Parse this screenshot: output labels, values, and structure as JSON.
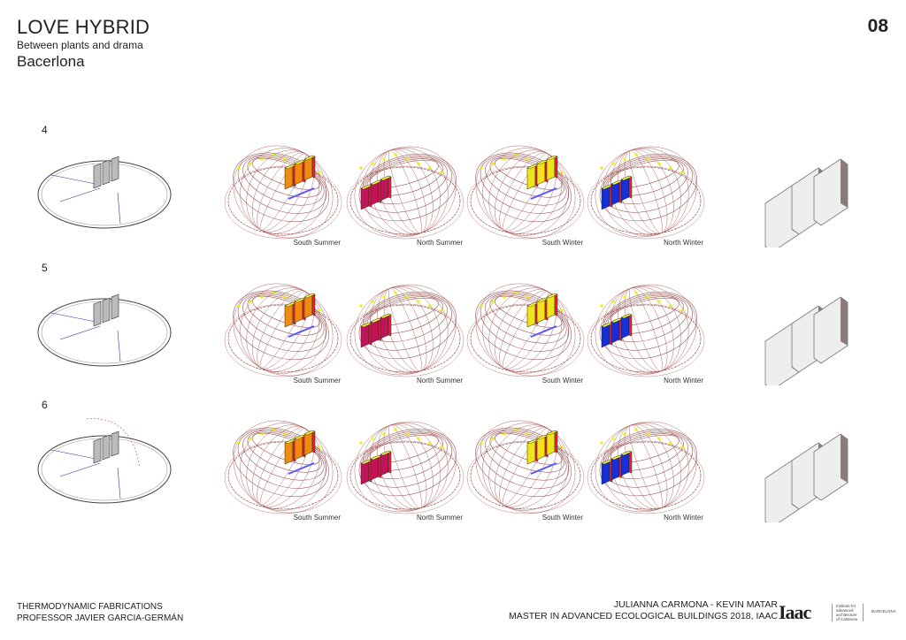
{
  "header": {
    "title": "LOVE HYBRID",
    "subtitle": "Between plants and drama",
    "city": "Bacerlona",
    "page_number": "08"
  },
  "rows": [
    {
      "label": "4",
      "captions": [
        "South Summer",
        "North Summer",
        "South Winter",
        "North Winter"
      ]
    },
    {
      "label": "5",
      "captions": [
        "South Summer",
        "North Summer",
        "South Winter",
        "North Winter"
      ]
    },
    {
      "label": "6",
      "captions": [
        "South Summer",
        "North Summer",
        "South Winter",
        "North Winter"
      ]
    }
  ],
  "panel_colors": [
    "#f08a10",
    "#c0145a",
    "#f2e41a",
    "#1630d8"
  ],
  "footer": {
    "left_line1": "THERMODYNAMIC FABRICATIONS",
    "left_line2": "PROFESSOR JAVIER GARCIA-GERMÁN",
    "right_line1": "JULIANNA CARMONA - KEVIN MATAR",
    "right_line2": "MASTER IN ADVANCED ECOLOGICAL BUILDINGS 2018, IAAC",
    "logo": "Iaac",
    "logo_text": "Institute for advanced architecture of Catalonia",
    "logo_city": "BARCELONA"
  }
}
